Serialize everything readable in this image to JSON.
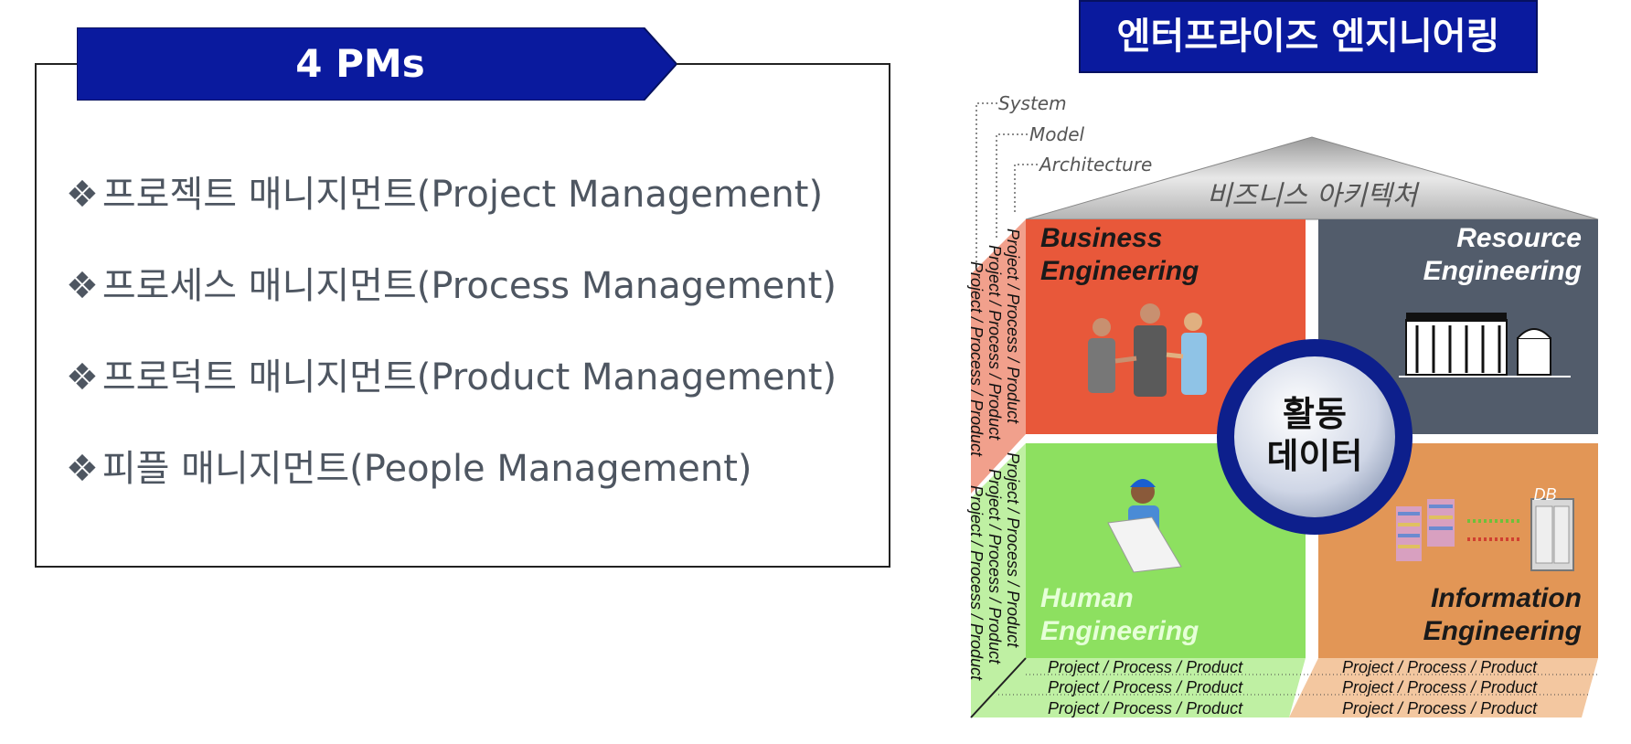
{
  "left": {
    "title": "4 PMs",
    "items": [
      {
        "bullet": "❖",
        "text": "프로젝트 매니지먼트(Project Management)"
      },
      {
        "bullet": "❖",
        "text": "프로세스 매니지먼트(Process Management)"
      },
      {
        "bullet": "❖",
        "text": "프로덕트 매니지먼트(Product Management)"
      },
      {
        "bullet": "❖",
        "text": "피플 매니지먼트(People Management)"
      }
    ]
  },
  "right": {
    "title": "엔터프라이즈 엔지니어링",
    "guides": {
      "system": "System",
      "model": "Model",
      "architecture": "Architecture"
    },
    "roof_label": "비즈니스 아키텍처",
    "quadrants": {
      "business": {
        "line1": "Business",
        "line2": "Engineering",
        "color": "#e8583a"
      },
      "resource": {
        "line1": "Resource",
        "line2": "Engineering",
        "color": "#525c6b"
      },
      "human": {
        "line1": "Human",
        "line2": "Engineering",
        "color": "#8de060"
      },
      "information": {
        "line1": "Information",
        "line2": "Engineering",
        "color": "#e29656"
      }
    },
    "center": {
      "line1": "활동",
      "line2": "데이터"
    },
    "db_label": "DB",
    "ppp": "Project / Process / Product"
  },
  "colors": {
    "title_bar": "#0a1a9e",
    "ring": "#0d1f8c",
    "roof": "#a9a9a9"
  }
}
